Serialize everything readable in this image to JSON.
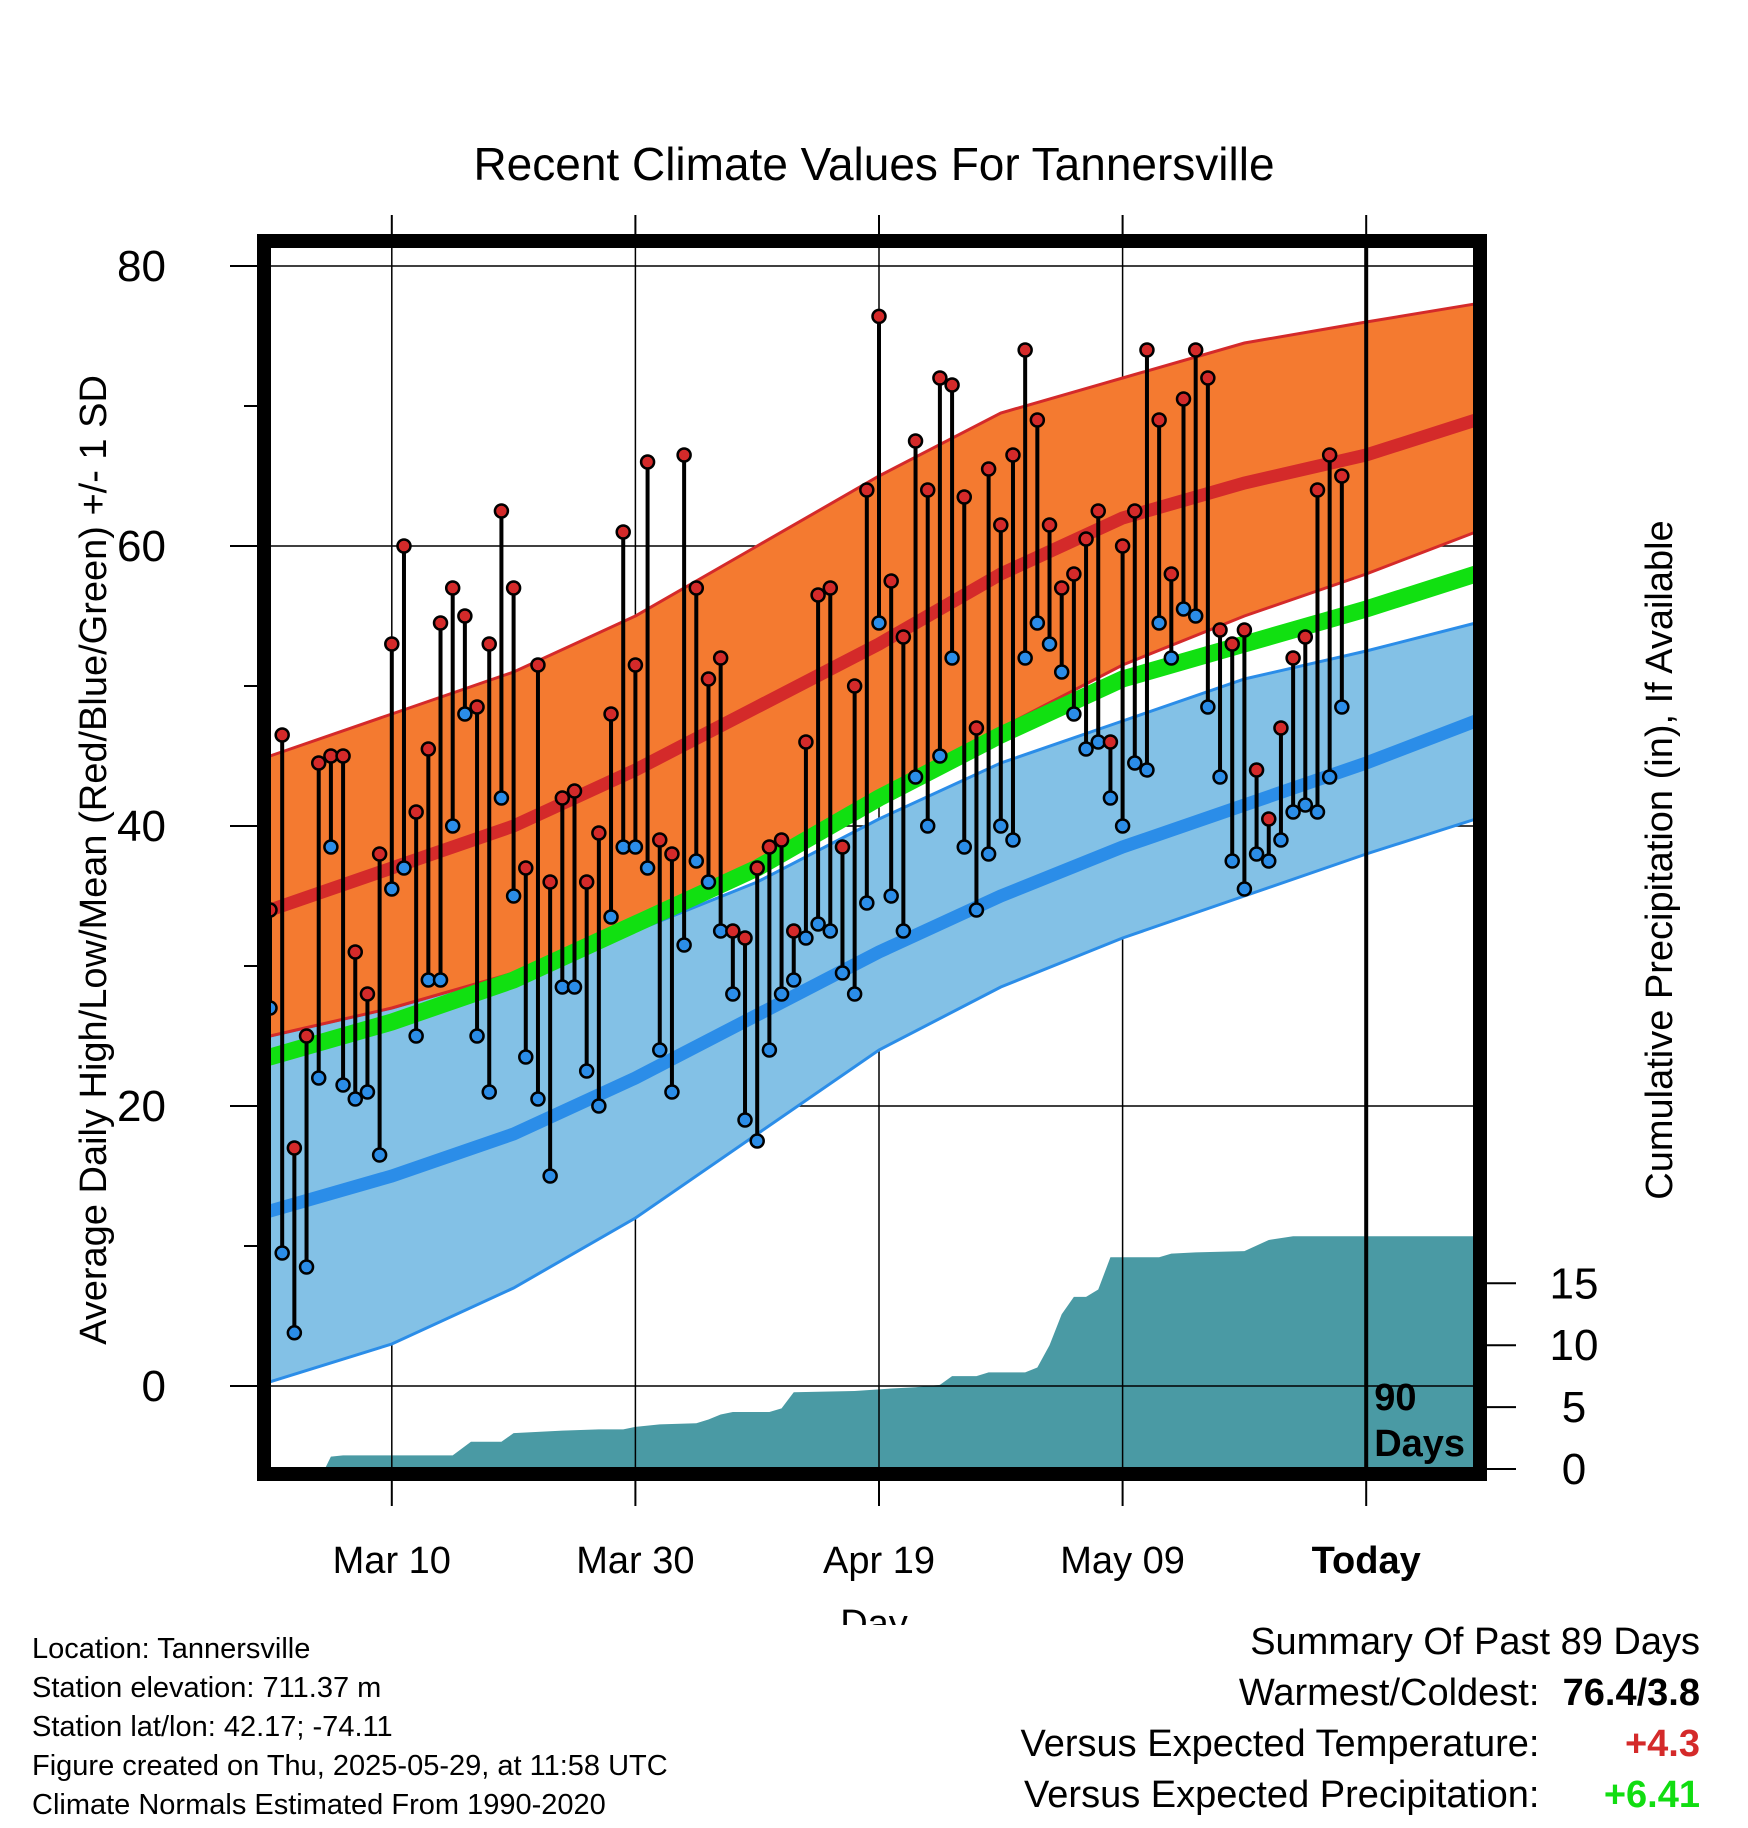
{
  "title": "Recent Climate Values For Tannersville",
  "colors": {
    "high_band": "#f47a30",
    "high_line": "#d42a2a",
    "low_band": "#83c1e6",
    "low_line": "#2b8de8",
    "mean_line": "#11e011",
    "precip_fill": "#4a9aa4",
    "high_dot": "#d42a2a",
    "low_dot": "#2b8de8",
    "positive_temp": "#d42a2a",
    "positive_precip": "#11dd11"
  },
  "chart_data": {
    "type": "line",
    "title": "Recent Climate Values For Tannersville",
    "xlabel": "Day",
    "ylabel": "Average Daily High/Low/Mean (Red/Blue/Green) +/- 1 SD",
    "y2label": "Cumulative Precipitation (in), If Available",
    "ylim": [
      -6,
      81
    ],
    "y2lim": [
      0,
      19.2
    ],
    "yticks": [
      0,
      20,
      40,
      60,
      80
    ],
    "y2ticks": [
      0,
      5,
      10,
      15
    ],
    "xticks": [
      {
        "day": 10,
        "label": "Mar 10"
      },
      {
        "day": 30,
        "label": "Mar 30"
      },
      {
        "day": 50,
        "label": "Apr 19"
      },
      {
        "day": 70,
        "label": "May 09"
      },
      {
        "day": 90,
        "label": "Today"
      }
    ],
    "today_marker": {
      "day": 90,
      "label_line1": "90",
      "label_line2": "Days"
    },
    "normals_x": [
      0,
      10,
      20,
      30,
      40,
      50,
      60,
      70,
      80,
      90,
      99
    ],
    "normal_high": [
      34,
      37,
      40,
      44,
      48.5,
      53,
      58,
      62,
      64.5,
      66.5,
      69
    ],
    "normal_high_sd_upper": [
      45,
      48,
      51,
      55,
      60,
      65,
      69.5,
      72,
      74.5,
      76,
      77.3
    ],
    "normal_high_sd_lower": [
      25,
      27,
      29.5,
      33,
      37,
      41.5,
      47,
      51.5,
      55,
      58,
      61
    ],
    "normal_low": [
      12.5,
      15,
      18,
      22,
      26.5,
      31,
      35,
      38.5,
      41.5,
      44.5,
      47.5
    ],
    "normal_low_sd_upper": [
      25,
      27,
      29.5,
      32.5,
      36,
      40.5,
      44.5,
      47.5,
      50.5,
      52.5,
      54.5
    ],
    "normal_low_sd_lower": [
      0.3,
      3,
      7,
      12,
      18,
      24,
      28.5,
      32,
      35,
      38,
      40.5
    ],
    "normal_mean": [
      23.5,
      26,
      29,
      33,
      37,
      42,
      46.5,
      50.5,
      53,
      55.5,
      58
    ],
    "daily": [
      {
        "day": 0,
        "high": 34,
        "low": 27
      },
      {
        "day": 1,
        "high": 46.5,
        "low": 9.5
      },
      {
        "day": 2,
        "high": 17,
        "low": 3.8
      },
      {
        "day": 3,
        "high": 25,
        "low": 8.5
      },
      {
        "day": 4,
        "high": 44.5,
        "low": 22
      },
      {
        "day": 5,
        "high": 45,
        "low": 38.5
      },
      {
        "day": 6,
        "high": 45,
        "low": 21.5
      },
      {
        "day": 7,
        "high": 31,
        "low": 20.5
      },
      {
        "day": 8,
        "high": 28,
        "low": 21
      },
      {
        "day": 9,
        "high": 38,
        "low": 16.5
      },
      {
        "day": 10,
        "high": 53,
        "low": 35.5
      },
      {
        "day": 11,
        "high": 60,
        "low": 37
      },
      {
        "day": 12,
        "high": 41,
        "low": 25
      },
      {
        "day": 13,
        "high": 45.5,
        "low": 29
      },
      {
        "day": 14,
        "high": 54.5,
        "low": 29
      },
      {
        "day": 15,
        "high": 57,
        "low": 40
      },
      {
        "day": 16,
        "high": 55,
        "low": 48
      },
      {
        "day": 17,
        "high": 48.5,
        "low": 25
      },
      {
        "day": 18,
        "high": 53,
        "low": 21
      },
      {
        "day": 19,
        "high": 62.5,
        "low": 42
      },
      {
        "day": 20,
        "high": 57,
        "low": 35
      },
      {
        "day": 21,
        "high": 37,
        "low": 23.5
      },
      {
        "day": 22,
        "high": 51.5,
        "low": 20.5
      },
      {
        "day": 23,
        "high": 36,
        "low": 15
      },
      {
        "day": 24,
        "high": 42,
        "low": 28.5
      },
      {
        "day": 25,
        "high": 42.5,
        "low": 28.5
      },
      {
        "day": 26,
        "high": 36,
        "low": 22.5
      },
      {
        "day": 27,
        "high": 39.5,
        "low": 20
      },
      {
        "day": 28,
        "high": 48,
        "low": 33.5
      },
      {
        "day": 29,
        "high": 61,
        "low": 38.5
      },
      {
        "day": 30,
        "high": 51.5,
        "low": 38.5
      },
      {
        "day": 31,
        "high": 66,
        "low": 37
      },
      {
        "day": 32,
        "high": 39,
        "low": 24
      },
      {
        "day": 33,
        "high": 38,
        "low": 21
      },
      {
        "day": 34,
        "high": 66.5,
        "low": 31.5
      },
      {
        "day": 35,
        "high": 57,
        "low": 37.5
      },
      {
        "day": 36,
        "high": 50.5,
        "low": 36
      },
      {
        "day": 37,
        "high": 52,
        "low": 32.5
      },
      {
        "day": 38,
        "high": 32.5,
        "low": 28
      },
      {
        "day": 39,
        "high": 32,
        "low": 19
      },
      {
        "day": 40,
        "high": 37,
        "low": 17.5
      },
      {
        "day": 41,
        "high": 38.5,
        "low": 24
      },
      {
        "day": 42,
        "high": 39,
        "low": 28
      },
      {
        "day": 43,
        "high": 32.5,
        "low": 29
      },
      {
        "day": 44,
        "high": 46,
        "low": 32
      },
      {
        "day": 45,
        "high": 56.5,
        "low": 33
      },
      {
        "day": 46,
        "high": 57,
        "low": 32.5
      },
      {
        "day": 47,
        "high": 38.5,
        "low": 29.5
      },
      {
        "day": 48,
        "high": 50,
        "low": 28
      },
      {
        "day": 49,
        "high": 64,
        "low": 34.5
      },
      {
        "day": 50,
        "high": 76.4,
        "low": 54.5
      },
      {
        "day": 51,
        "high": 57.5,
        "low": 35
      },
      {
        "day": 52,
        "high": 53.5,
        "low": 32.5
      },
      {
        "day": 53,
        "high": 67.5,
        "low": 43.5
      },
      {
        "day": 54,
        "high": 64,
        "low": 40
      },
      {
        "day": 55,
        "high": 72,
        "low": 45
      },
      {
        "day": 56,
        "high": 71.5,
        "low": 52
      },
      {
        "day": 57,
        "high": 63.5,
        "low": 38.5
      },
      {
        "day": 58,
        "high": 47,
        "low": 34
      },
      {
        "day": 59,
        "high": 65.5,
        "low": 38
      },
      {
        "day": 60,
        "high": 61.5,
        "low": 40
      },
      {
        "day": 61,
        "high": 66.5,
        "low": 39
      },
      {
        "day": 62,
        "high": 74,
        "low": 52
      },
      {
        "day": 63,
        "high": 69,
        "low": 54.5
      },
      {
        "day": 64,
        "high": 61.5,
        "low": 53
      },
      {
        "day": 65,
        "high": 57,
        "low": 51
      },
      {
        "day": 66,
        "high": 58,
        "low": 48
      },
      {
        "day": 67,
        "high": 60.5,
        "low": 45.5
      },
      {
        "day": 68,
        "high": 62.5,
        "low": 46
      },
      {
        "day": 69,
        "high": 46,
        "low": 42
      },
      {
        "day": 70,
        "high": 60,
        "low": 40
      },
      {
        "day": 71,
        "high": 62.5,
        "low": 44.5
      },
      {
        "day": 72,
        "high": 74,
        "low": 44
      },
      {
        "day": 73,
        "high": 69,
        "low": 54.5
      },
      {
        "day": 74,
        "high": 58,
        "low": 52
      },
      {
        "day": 75,
        "high": 70.5,
        "low": 55.5
      },
      {
        "day": 76,
        "high": 74,
        "low": 55
      },
      {
        "day": 77,
        "high": 72,
        "low": 48.5
      },
      {
        "day": 78,
        "high": 54,
        "low": 43.5
      },
      {
        "day": 79,
        "high": 53,
        "low": 37.5
      },
      {
        "day": 80,
        "high": 54,
        "low": 35.5
      },
      {
        "day": 81,
        "high": 44,
        "low": 38
      },
      {
        "day": 82,
        "high": 40.5,
        "low": 37.5
      },
      {
        "day": 83,
        "high": 47,
        "low": 39
      },
      {
        "day": 84,
        "high": 52,
        "low": 41
      },
      {
        "day": 85,
        "high": 53.5,
        "low": 41.5
      },
      {
        "day": 86,
        "high": 64,
        "low": 41
      },
      {
        "day": 87,
        "high": 66.5,
        "low": 43.5
      },
      {
        "day": 88,
        "high": 65,
        "low": 48.5
      }
    ],
    "precip_cumulative": [
      {
        "day": 0,
        "value": 0
      },
      {
        "day": 4.5,
        "value": 0
      },
      {
        "day": 5,
        "value": 1.0
      },
      {
        "day": 6,
        "value": 1.1
      },
      {
        "day": 15,
        "value": 1.1
      },
      {
        "day": 16.5,
        "value": 2.2
      },
      {
        "day": 19,
        "value": 2.2
      },
      {
        "day": 20,
        "value": 2.9
      },
      {
        "day": 24,
        "value": 3.1
      },
      {
        "day": 27,
        "value": 3.2
      },
      {
        "day": 29,
        "value": 3.2
      },
      {
        "day": 30,
        "value": 3.4
      },
      {
        "day": 32,
        "value": 3.6
      },
      {
        "day": 35,
        "value": 3.7
      },
      {
        "day": 36,
        "value": 4.0
      },
      {
        "day": 37,
        "value": 4.4
      },
      {
        "day": 38,
        "value": 4.6
      },
      {
        "day": 41,
        "value": 4.6
      },
      {
        "day": 42,
        "value": 4.9
      },
      {
        "day": 43,
        "value": 6.2
      },
      {
        "day": 48,
        "value": 6.3
      },
      {
        "day": 51,
        "value": 6.5
      },
      {
        "day": 53,
        "value": 6.6
      },
      {
        "day": 55,
        "value": 6.8
      },
      {
        "day": 56,
        "value": 7.5
      },
      {
        "day": 58,
        "value": 7.5
      },
      {
        "day": 59,
        "value": 7.8
      },
      {
        "day": 62,
        "value": 7.8
      },
      {
        "day": 63,
        "value": 8.2
      },
      {
        "day": 64,
        "value": 10
      },
      {
        "day": 65,
        "value": 12.5
      },
      {
        "day": 66,
        "value": 13.9
      },
      {
        "day": 67,
        "value": 13.9
      },
      {
        "day": 68,
        "value": 14.5
      },
      {
        "day": 69,
        "value": 17.1
      },
      {
        "day": 71,
        "value": 17.1
      },
      {
        "day": 72,
        "value": 17.1
      },
      {
        "day": 73,
        "value": 17.1
      },
      {
        "day": 74,
        "value": 17.4
      },
      {
        "day": 76,
        "value": 17.5
      },
      {
        "day": 80,
        "value": 17.6
      },
      {
        "day": 82,
        "value": 18.5
      },
      {
        "day": 84,
        "value": 18.8
      },
      {
        "day": 99,
        "value": 18.8
      }
    ]
  },
  "info": {
    "location": "Location: Tannersville",
    "elevation": "Station elevation: 711.37 m",
    "latlon": "Station lat/lon: 42.17; -74.11",
    "created": "Figure created on Thu, 2025-05-29, at 11:58 UTC",
    "normals": "Climate Normals Estimated From 1990-2020"
  },
  "summary": {
    "heading": "Summary Of Past 89 Days",
    "warmest_coldest_label": "Warmest/Coldest:",
    "warmest_coldest_value": "76.4/3.8",
    "temp_label": "Versus Expected Temperature:",
    "temp_value": "+4.3",
    "precip_label": "Versus Expected Precipitation:",
    "precip_value": "+6.41"
  }
}
